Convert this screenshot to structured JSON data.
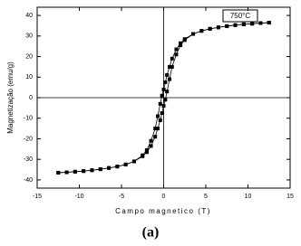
{
  "chart_data": {
    "type": "scatter",
    "x_label": "Campo magnetico (T)",
    "y_label": "Magnetização (emu/g)",
    "annotation": "750°C",
    "caption": "(a)",
    "x": [
      -12.5,
      -11.5,
      -10.5,
      -9.5,
      -8.5,
      -7.5,
      -6.5,
      -5.5,
      -4.5,
      -3.5,
      -2.5,
      -2,
      -1.5,
      -1,
      -0.7,
      -0.4,
      -0.2,
      0,
      0.2,
      0.4,
      0.7,
      1,
      1.5,
      2,
      2.5,
      3.5,
      4.5,
      5.5,
      6.5,
      7.5,
      8.5,
      9.5,
      10.5,
      11.5,
      12.5
    ],
    "series": [
      {
        "color": "#000000",
        "values": [
          -36.5,
          -36.3,
          -36,
          -35.7,
          -35.3,
          -34.8,
          -34.2,
          -33.5,
          -32.5,
          -31,
          -28.5,
          -26.5,
          -23.5,
          -19,
          -15,
          -11,
          -7.5,
          -4,
          -1,
          3,
          9,
          15,
          21,
          25.5,
          28,
          31,
          32.5,
          33.5,
          34.2,
          34.8,
          35.3,
          35.7,
          36,
          36.3,
          36.5
        ]
      },
      {
        "color": "#000000",
        "values": [
          -36.5,
          -36.3,
          -36,
          -35.7,
          -35.3,
          -34.8,
          -34.2,
          -33.5,
          -32.5,
          -31,
          -28,
          -25.5,
          -21,
          -15,
          -9,
          -3,
          1,
          4,
          7.5,
          11,
          15,
          19,
          23.5,
          26.5,
          28.5,
          31,
          32.5,
          33.5,
          34.2,
          34.8,
          35.3,
          35.7,
          36,
          36.3,
          36.5
        ]
      }
    ],
    "xlim": [
      -15,
      15
    ],
    "ylim": [
      -44,
      44
    ],
    "xticks": [
      -15,
      -10,
      -5,
      0,
      5,
      10,
      15
    ],
    "yticks": [
      -40,
      -30,
      -20,
      -10,
      0,
      10,
      20,
      30,
      40
    ],
    "zero_lines": true,
    "marker": "square"
  }
}
